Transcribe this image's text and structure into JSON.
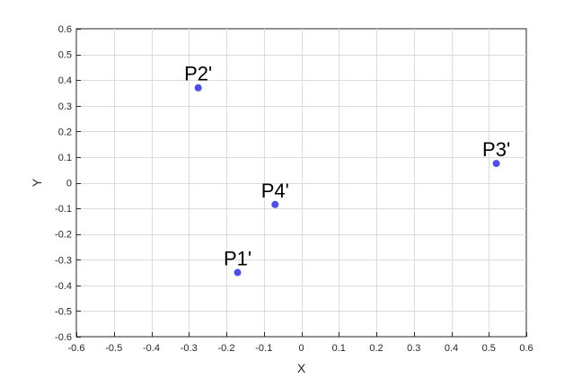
{
  "chart_data": {
    "type": "scatter",
    "xlabel": "X",
    "ylabel": "Y",
    "xlim": [
      -0.6,
      0.6
    ],
    "ylim": [
      -0.6,
      0.6
    ],
    "grid": true,
    "xticks": [
      -0.6,
      -0.5,
      -0.4,
      -0.3,
      -0.2,
      -0.1,
      0,
      0.1,
      0.2,
      0.3,
      0.4,
      0.5,
      0.6
    ],
    "yticks": [
      -0.6,
      -0.5,
      -0.4,
      -0.3,
      -0.2,
      -0.1,
      0,
      0.1,
      0.2,
      0.3,
      0.4,
      0.5,
      0.6
    ],
    "xtick_labels": [
      "-0.6",
      "-0.5",
      "-0.4",
      "-0.3",
      "-0.2",
      "-0.1",
      "0",
      "0.1",
      "0.2",
      "0.3",
      "0.4",
      "0.5",
      "0.6"
    ],
    "ytick_labels": [
      "-0.6",
      "-0.5",
      "-0.4",
      "-0.3",
      "-0.2",
      "-0.1",
      "0",
      "0.1",
      "0.2",
      "0.3",
      "0.4",
      "0.5",
      "0.6"
    ],
    "marker_color": "#4d4df0",
    "points": [
      {
        "label": "P1'",
        "x": -0.17,
        "y": -0.35
      },
      {
        "label": "P2'",
        "x": -0.275,
        "y": 0.37
      },
      {
        "label": "P3'",
        "x": 0.52,
        "y": 0.075
      },
      {
        "label": "P4'",
        "x": -0.07,
        "y": -0.085
      }
    ]
  }
}
